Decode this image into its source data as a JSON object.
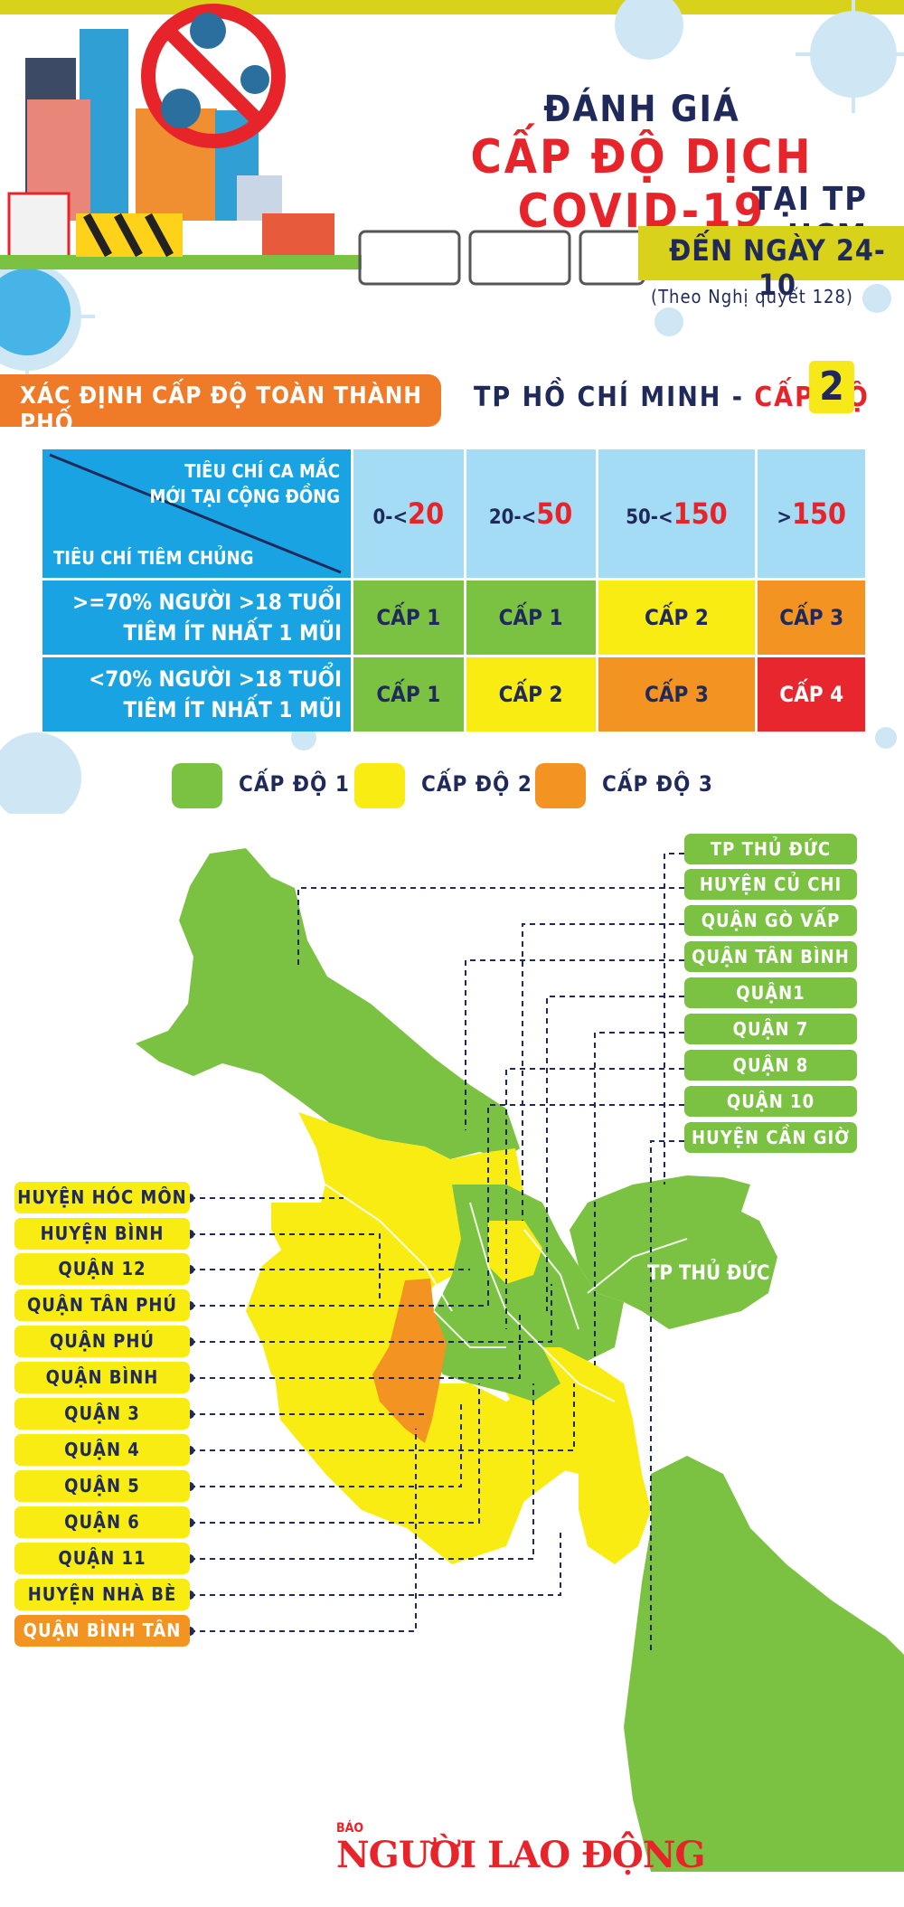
{
  "header": {
    "title_line1": "ĐÁNH GIÁ",
    "title_line2": "CẤP ĐỘ DỊCH COVID-19",
    "title_line3": "TẠI TP HCM",
    "date": "ĐẾN NGÀY 24-10",
    "note": "(Theo Nghị quyết 128)",
    "illustration_badge": "COVID-19"
  },
  "summary": {
    "determine_label": "XÁC ĐỊNH CẤP ĐỘ TOÀN THÀNH PHỐ",
    "city_prefix": "TP HỒ CHÍ MINH - ",
    "city_level_word": "CẤP ĐỘ",
    "city_level_value": "2"
  },
  "table": {
    "header_top_line1": "TIÊU CHÍ CA MẮC",
    "header_top_line2": "MỚI TẠI CỘNG ĐỒNG",
    "header_bottom": "TIÊU CHÍ TIÊM CHỦNG",
    "ranges": [
      {
        "prefix": "0-<",
        "value": "20"
      },
      {
        "prefix": "20-<",
        "value": "50"
      },
      {
        "prefix": "50-<",
        "value": "150"
      },
      {
        "prefix": ">",
        "value": "150"
      }
    ],
    "rows": [
      {
        "line1": ">=70% NGƯỜI >18 TUỔI",
        "line2": "TIÊM ÍT NHẤT 1 MŨI",
        "cells": [
          "CẤP 1",
          "CẤP 1",
          "CẤP 2",
          "CẤP 3"
        ]
      },
      {
        "line1": "<70% NGƯỜI >18 TUỔI",
        "line2": "TIÊM ÍT NHẤT 1 MŨI",
        "cells": [
          "CẤP 1",
          "CẤP 2",
          "CẤP 3",
          "CẤP 4"
        ]
      }
    ]
  },
  "legend": [
    {
      "label": "CẤP ĐỘ 1",
      "color": "#7cc242"
    },
    {
      "label": "CẤP ĐỘ 2",
      "color": "#f8ec12"
    },
    {
      "label": "CẤP ĐỘ 3",
      "color": "#f39322"
    }
  ],
  "map": {
    "level1_areas": [
      "TP THỦ ĐỨC",
      "HUYỆN CỦ CHI",
      "QUẬN GÒ VẤP",
      "QUẬN TÂN BÌNH",
      "QUẬN1",
      "QUẬN 7",
      "QUẬN 8",
      "QUẬN 10",
      "HUYỆN CẦN GIỜ"
    ],
    "level2_areas": [
      "HUYỆN HÓC MÔN",
      "HUYỆN BÌNH CHÁNH",
      "QUẬN 12",
      "QUẬN TÂN PHÚ",
      "QUẬN PHÚ NHUẬN",
      "QUẬN BÌNH THẠNH",
      "QUẬN 3",
      "QUẬN 4",
      "QUẬN 5",
      "QUẬN 6",
      "QUẬN 11",
      "HUYỆN NHÀ BÈ"
    ],
    "level3_areas": [
      "QUẬN BÌNH TÂN"
    ],
    "map_label": "TP THỦ ĐỨC"
  },
  "footer": {
    "brand_small": "BÁO",
    "brand": "NGƯỜI LAO ĐỘNG"
  },
  "colors": {
    "level1": "#7cc242",
    "level2": "#f8ec12",
    "level3": "#f39322",
    "level4": "#e8262d",
    "accent_red": "#e8242b",
    "navy": "#1f2a5a"
  }
}
